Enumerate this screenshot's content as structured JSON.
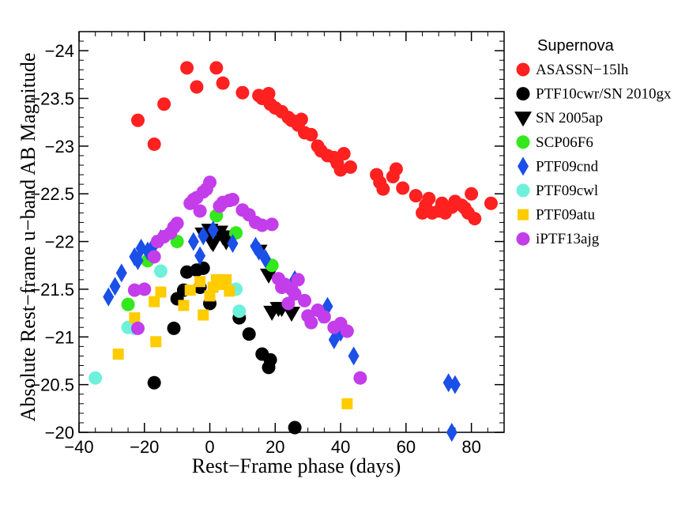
{
  "chart_data": {
    "type": "scatter",
    "xlabel": "Rest−Frame phase (days)",
    "ylabel": "Absolute Rest−frame u−band AB Magnitude",
    "xlim": [
      -40,
      90
    ],
    "ylim": [
      -20,
      -24.2
    ],
    "y_inverted": true,
    "x_ticks": [
      -40,
      -20,
      0,
      20,
      40,
      60,
      80
    ],
    "x_tick_labels": [
      "−40",
      "−20",
      "0",
      "20",
      "40",
      "60",
      "80"
    ],
    "y_ticks": [
      -20,
      -20.5,
      -21,
      -21.5,
      -22,
      -22.5,
      -23,
      -23.5,
      -24
    ],
    "y_tick_labels": [
      "−20",
      "−20.5",
      "−21",
      "−21.5",
      "−22",
      "−22.5",
      "−23",
      "−23.5",
      "−24"
    ],
    "legend_title": "Supernova",
    "legend_position": "outside right",
    "grid": false,
    "series": [
      {
        "name": "ASASSN−15lh",
        "color": "#ff2020",
        "marker": "circle",
        "points": [
          [
            -22,
            -23.27
          ],
          [
            -17,
            -23.02
          ],
          [
            -14,
            -23.44
          ],
          [
            -7,
            -23.82
          ],
          [
            -4,
            -23.62
          ],
          [
            2,
            -23.82
          ],
          [
            4,
            -23.66
          ],
          [
            10,
            -23.56
          ],
          [
            15,
            -23.53
          ],
          [
            16,
            -23.5
          ],
          [
            18,
            -23.55
          ],
          [
            18.5,
            -23.44
          ],
          [
            20,
            -23.4
          ],
          [
            22,
            -23.36
          ],
          [
            24,
            -23.3
          ],
          [
            25,
            -23.27
          ],
          [
            27,
            -23.22
          ],
          [
            28,
            -23.28
          ],
          [
            29,
            -23.14
          ],
          [
            31,
            -23.12
          ],
          [
            33,
            -23.0
          ],
          [
            34,
            -22.95
          ],
          [
            36,
            -22.9
          ],
          [
            38,
            -22.88
          ],
          [
            39,
            -22.82
          ],
          [
            40,
            -22.75
          ],
          [
            41,
            -22.92
          ],
          [
            43,
            -22.78
          ],
          [
            51,
            -22.7
          ],
          [
            52,
            -22.62
          ],
          [
            53,
            -22.55
          ],
          [
            56,
            -22.68
          ],
          [
            57,
            -22.76
          ],
          [
            59,
            -22.56
          ],
          [
            63,
            -22.48
          ],
          [
            65,
            -22.3
          ],
          [
            66,
            -22.38
          ],
          [
            67,
            -22.45
          ],
          [
            68,
            -22.3
          ],
          [
            70,
            -22.32
          ],
          [
            71,
            -22.4
          ],
          [
            72,
            -22.3
          ],
          [
            74,
            -22.36
          ],
          [
            75,
            -22.42
          ],
          [
            77,
            -22.38
          ],
          [
            78,
            -22.35
          ],
          [
            79,
            -22.3
          ],
          [
            80,
            -22.5
          ],
          [
            81,
            -22.24
          ],
          [
            86,
            -22.4
          ]
        ]
      },
      {
        "name": "PTF10cwr/SN 2010gx",
        "color": "#000000",
        "marker": "circle",
        "points": [
          [
            -17,
            -20.52
          ],
          [
            -11,
            -21.09
          ],
          [
            -10,
            -21.4
          ],
          [
            -8,
            -21.49
          ],
          [
            -7,
            -21.68
          ],
          [
            -4,
            -21.7
          ],
          [
            -3,
            -21.52
          ],
          [
            -2,
            -21.72
          ],
          [
            0,
            -21.35
          ],
          [
            9,
            -21.2
          ],
          [
            12,
            -21.03
          ],
          [
            16,
            -20.82
          ],
          [
            18,
            -20.68
          ],
          [
            18.5,
            -20.76
          ],
          [
            26,
            -20.05
          ]
        ]
      },
      {
        "name": "SN 2005ap",
        "color": "#000000",
        "marker": "triangle-down",
        "points": [
          [
            -2,
            -22.08
          ],
          [
            0,
            -22.12
          ],
          [
            0.5,
            -22.0
          ],
          [
            1,
            -21.98
          ],
          [
            3,
            -22.1
          ],
          [
            4,
            -22.05
          ],
          [
            5,
            -22.0
          ],
          [
            15,
            -21.9
          ],
          [
            18,
            -21.65
          ],
          [
            19,
            -21.26
          ],
          [
            21,
            -21.3
          ],
          [
            22,
            -21.3
          ],
          [
            25,
            -21.25
          ]
        ]
      },
      {
        "name": "SCP06F6",
        "color": "#33e81c",
        "marker": "circle",
        "points": [
          [
            -25,
            -21.34
          ],
          [
            -19,
            -21.8
          ],
          [
            -10,
            -22.0
          ],
          [
            2,
            -22.27
          ],
          [
            8,
            -22.09
          ],
          [
            19,
            -21.75
          ]
        ]
      },
      {
        "name": "PTF09cnd",
        "color": "#1a4fe8",
        "marker": "diamond",
        "points": [
          [
            -31,
            -21.42
          ],
          [
            -29,
            -21.53
          ],
          [
            -27,
            -21.67
          ],
          [
            -23,
            -21.84
          ],
          [
            -22,
            -21.8
          ],
          [
            -21,
            -21.93
          ],
          [
            -19,
            -21.9
          ],
          [
            -17,
            -21.97
          ],
          [
            -15,
            -22.03
          ],
          [
            -5,
            -22.0
          ],
          [
            -3,
            -21.85
          ],
          [
            -2,
            -22.06
          ],
          [
            1,
            -22.12
          ],
          [
            7,
            -21.98
          ],
          [
            14,
            -21.95
          ],
          [
            15,
            -21.9
          ],
          [
            17,
            -21.82
          ],
          [
            26,
            -21.6
          ],
          [
            34,
            -21.24
          ],
          [
            36,
            -21.32
          ],
          [
            38,
            -20.97
          ],
          [
            40,
            -21.05
          ],
          [
            44,
            -20.8
          ],
          [
            73,
            -20.52
          ],
          [
            75,
            -20.5
          ],
          [
            74,
            -20.0
          ]
        ]
      },
      {
        "name": "PTF09cwl",
        "color": "#6ff0da",
        "marker": "circle",
        "points": [
          [
            -35,
            -20.57
          ],
          [
            -25,
            -21.1
          ],
          [
            -23,
            -21.09
          ],
          [
            -15,
            -21.69
          ],
          [
            8,
            -21.5
          ],
          [
            9,
            -21.27
          ]
        ]
      },
      {
        "name": "PTF09atu",
        "color": "#ffcc00",
        "marker": "square",
        "points": [
          [
            -28,
            -20.82
          ],
          [
            -23,
            -21.2
          ],
          [
            -17,
            -21.37
          ],
          [
            -16.5,
            -20.95
          ],
          [
            -15,
            -21.47
          ],
          [
            -8,
            -21.33
          ],
          [
            -6,
            -21.49
          ],
          [
            -3,
            -21.58
          ],
          [
            -2,
            -21.23
          ],
          [
            0,
            -21.43
          ],
          [
            1,
            -21.52
          ],
          [
            2,
            -21.6
          ],
          [
            4,
            -21.55
          ],
          [
            5,
            -21.6
          ],
          [
            6,
            -21.48
          ],
          [
            42,
            -20.3
          ]
        ]
      },
      {
        "name": "iPTF13ajg",
        "color": "#c33dea",
        "marker": "circle",
        "points": [
          [
            -23,
            -21.49
          ],
          [
            -22,
            -21.09
          ],
          [
            -20,
            -21.5
          ],
          [
            -17,
            -21.84
          ],
          [
            -16,
            -22.0
          ],
          [
            -14,
            -22.05
          ],
          [
            -12,
            -22.09
          ],
          [
            -11,
            -22.15
          ],
          [
            -10,
            -22.19
          ],
          [
            -6,
            -22.4
          ],
          [
            -5,
            -22.44
          ],
          [
            -4,
            -22.46
          ],
          [
            -3,
            -22.32
          ],
          [
            -2,
            -22.52
          ],
          [
            -1,
            -22.55
          ],
          [
            0,
            -22.62
          ],
          [
            3,
            -22.37
          ],
          [
            4,
            -22.41
          ],
          [
            6,
            -22.43
          ],
          [
            7,
            -22.44
          ],
          [
            10,
            -22.33
          ],
          [
            12,
            -22.28
          ],
          [
            14,
            -22.2
          ],
          [
            16,
            -22.17
          ],
          [
            19,
            -22.18
          ],
          [
            21,
            -21.61
          ],
          [
            22,
            -21.52
          ],
          [
            23,
            -21.55
          ],
          [
            24,
            -21.35
          ],
          [
            25,
            -21.5
          ],
          [
            26,
            -21.45
          ],
          [
            27,
            -21.6
          ],
          [
            29,
            -21.38
          ],
          [
            30,
            -21.22
          ],
          [
            31,
            -21.15
          ],
          [
            33,
            -21.28
          ],
          [
            35,
            -21.21
          ],
          [
            38,
            -21.1
          ],
          [
            40,
            -21.14
          ],
          [
            42,
            -21.06
          ],
          [
            46,
            -20.57
          ]
        ]
      }
    ]
  }
}
